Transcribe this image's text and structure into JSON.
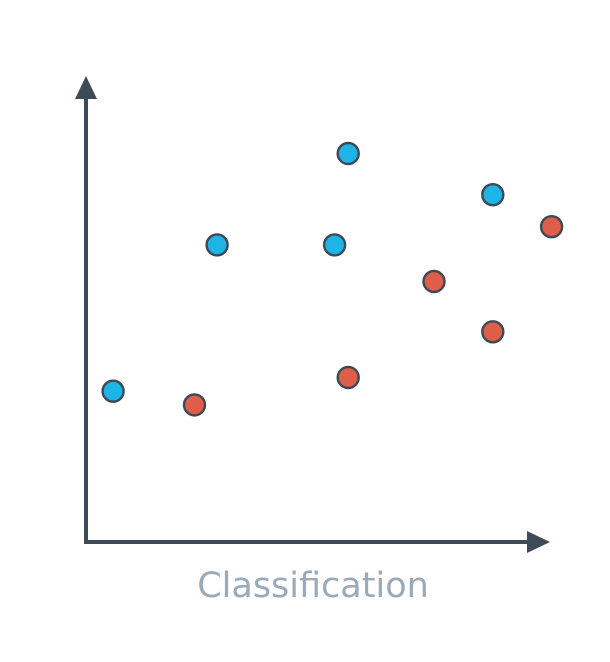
{
  "chart_data": {
    "type": "scatter",
    "title": "",
    "xlabel": "",
    "ylabel": "",
    "caption": "Classification",
    "grid": false,
    "legend": "none",
    "xlim": [
      0,
      10
    ],
    "ylim": [
      0,
      10
    ],
    "series": [
      {
        "color": "#1fb4e6",
        "points": [
          {
            "x": 0.6,
            "y": 3.3
          },
          {
            "x": 2.9,
            "y": 6.5
          },
          {
            "x": 5.5,
            "y": 6.5
          },
          {
            "x": 5.8,
            "y": 8.5
          },
          {
            "x": 9.0,
            "y": 7.6
          }
        ]
      },
      {
        "color": "#de5e4a",
        "points": [
          {
            "x": 2.4,
            "y": 3.0
          },
          {
            "x": 5.8,
            "y": 3.6
          },
          {
            "x": 7.7,
            "y": 5.7
          },
          {
            "x": 9.0,
            "y": 4.6
          },
          {
            "x": 10.3,
            "y": 6.9
          }
        ]
      }
    ]
  }
}
